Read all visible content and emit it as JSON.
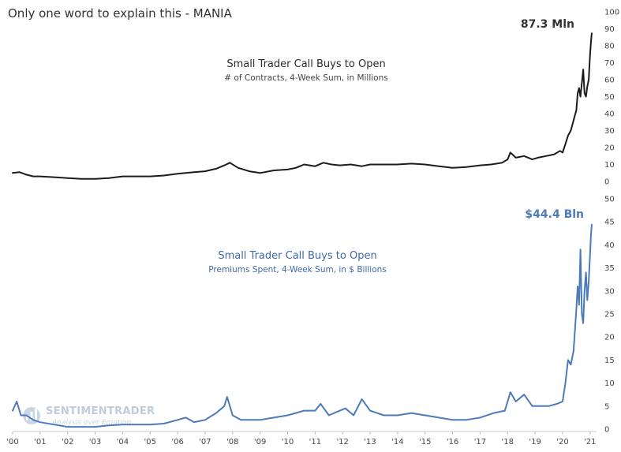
{
  "title": "Only one word to explain this - MANIA",
  "watermark": {
    "brand": "SENTIMENTRADER",
    "tagline": "Analysis over Emotion",
    "icon": "sentimentrader-logo"
  },
  "colors": {
    "top_series": "#1c1c1c",
    "bottom_series": "#4d7ab8",
    "bottom_text": "#3e6aa8",
    "watermark": "#b9c7d9"
  },
  "chart_data": [
    {
      "type": "line",
      "title": "Small Trader Call Buys to Open",
      "subtitle": "# of Contracts, 4-Week Sum, in Millions",
      "end_label": "87.3 Mln",
      "y_axis_side": "right",
      "ylim": [
        0,
        100
      ],
      "yticks": [
        0,
        10,
        20,
        30,
        40,
        50,
        60,
        70,
        80,
        90,
        100
      ],
      "grid": false,
      "series": [
        {
          "x": [
            2000.0,
            2000.25,
            2000.5,
            2000.75,
            2001.0,
            2001.5,
            2002.0,
            2002.5,
            2003.0,
            2003.5,
            2004.0,
            2004.5,
            2005.0,
            2005.5,
            2006.0,
            2006.3,
            2006.6,
            2007.0,
            2007.4,
            2007.7,
            2007.9,
            2008.2,
            2008.6,
            2009.0,
            2009.5,
            2010.0,
            2010.3,
            2010.6,
            2011.0,
            2011.3,
            2011.6,
            2011.9,
            2012.3,
            2012.7,
            2013.0,
            2013.5,
            2014.0,
            2014.5,
            2015.0,
            2015.5,
            2016.0,
            2016.5,
            2017.0,
            2017.4,
            2017.8,
            2018.0,
            2018.1,
            2018.3,
            2018.6,
            2018.9,
            2019.1,
            2019.4,
            2019.7,
            2019.9,
            2020.0,
            2020.1,
            2020.2,
            2020.3,
            2020.4,
            2020.5,
            2020.55,
            2020.6,
            2020.65,
            2020.7,
            2020.75,
            2020.8,
            2020.85,
            2020.9,
            2020.95,
            2021.0,
            2021.03,
            2021.06
          ],
          "y": [
            5,
            5.5,
            4,
            3,
            3,
            2.5,
            2,
            1.5,
            1.5,
            2,
            3,
            3,
            3,
            3.5,
            4.5,
            5,
            5.5,
            6,
            7.5,
            9.5,
            11,
            8,
            6,
            5,
            6.5,
            7,
            8,
            10,
            9,
            11,
            10,
            9.5,
            10,
            9,
            10,
            10,
            10,
            10.5,
            10,
            9,
            8,
            8.5,
            9.5,
            10,
            11,
            13,
            17,
            14,
            15,
            13,
            14,
            15,
            16,
            18,
            17,
            22,
            27,
            30,
            36,
            42,
            52,
            55,
            50,
            58,
            66,
            52,
            50,
            56,
            60,
            75,
            82,
            87.3
          ]
        }
      ]
    },
    {
      "type": "line",
      "title": "Small Trader Call Buys to Open",
      "subtitle": "Premiums Spent, 4-Week Sum, in $ Billions",
      "end_label": "$44.4 Bln",
      "y_axis_side": "right",
      "ylim": [
        0,
        50
      ],
      "yticks": [
        0,
        5,
        10,
        15,
        20,
        25,
        30,
        35,
        40,
        45,
        50
      ],
      "grid": false,
      "categories": [
        "'00",
        "'01",
        "'02",
        "'03",
        "'04",
        "'05",
        "'06",
        "'07",
        "'08",
        "'09",
        "'10",
        "'11",
        "'12",
        "'13",
        "'14",
        "'15",
        "'16",
        "'17",
        "'18",
        "'19",
        "'20",
        "'21"
      ],
      "series": [
        {
          "x": [
            2000.0,
            2000.15,
            2000.3,
            2000.5,
            2000.75,
            2001.0,
            2001.5,
            2002.0,
            2002.5,
            2003.0,
            2003.5,
            2004.0,
            2004.5,
            2005.0,
            2005.5,
            2006.0,
            2006.3,
            2006.6,
            2007.0,
            2007.4,
            2007.7,
            2007.8,
            2008.0,
            2008.3,
            2008.6,
            2009.0,
            2009.5,
            2010.0,
            2010.3,
            2010.6,
            2011.0,
            2011.2,
            2011.5,
            2011.9,
            2012.1,
            2012.4,
            2012.7,
            2013.0,
            2013.5,
            2014.0,
            2014.5,
            2015.0,
            2015.5,
            2016.0,
            2016.5,
            2017.0,
            2017.5,
            2017.9,
            2018.0,
            2018.1,
            2018.3,
            2018.6,
            2018.9,
            2019.1,
            2019.5,
            2019.8,
            2020.0,
            2020.1,
            2020.2,
            2020.3,
            2020.4,
            2020.5,
            2020.55,
            2020.6,
            2020.65,
            2020.7,
            2020.75,
            2020.8,
            2020.85,
            2020.9,
            2020.95,
            2021.0,
            2021.03,
            2021.06
          ],
          "y": [
            4,
            6,
            3,
            3,
            2,
            1.5,
            1,
            0.5,
            0.5,
            0.5,
            0.8,
            1,
            1,
            1,
            1.2,
            2,
            2.5,
            1.5,
            2,
            3.5,
            5,
            7,
            3,
            2,
            2,
            2,
            2.5,
            3,
            3.5,
            4,
            4,
            5.5,
            3,
            4,
            4.5,
            3,
            6.5,
            4,
            3,
            3,
            3.5,
            3,
            2.5,
            2,
            2,
            2.5,
            3.5,
            4,
            6,
            8,
            6,
            7.5,
            5,
            5,
            5,
            5.5,
            6,
            10,
            15,
            14,
            17,
            26,
            31,
            27,
            39,
            25,
            23,
            30,
            34,
            28,
            32,
            38,
            42,
            44.4
          ]
        }
      ]
    }
  ]
}
